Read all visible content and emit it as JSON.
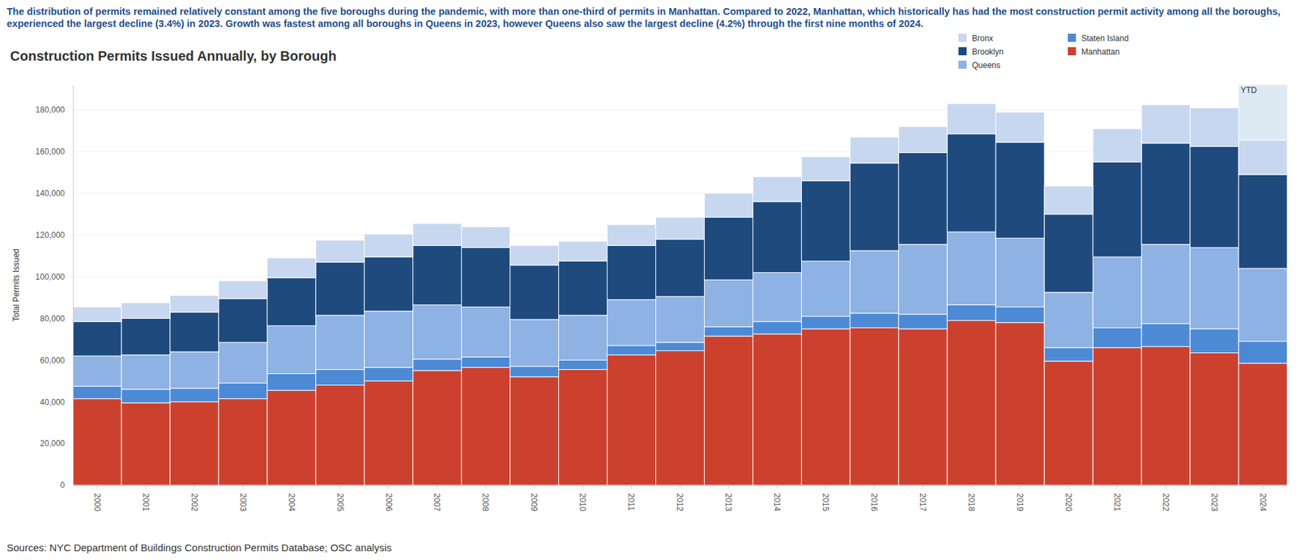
{
  "chart_data": {
    "type": "bar",
    "stacked": true,
    "subtitle": "The distribution of permits remained relatively constant among the five boroughs during the pandemic, with more than one-third of permits in Manhattan. Compared to 2022, Manhattan, which historically has had the most construction permit activity among all the boroughs, experienced the largest decline (3.4%) in 2023. Growth was fastest among all boroughs in Queens in 2023, however Queens also saw the largest decline (4.2%) through the first nine months of 2024.",
    "title": "Construction Permits Issued Annually, by Borough",
    "y_label": "Total Permits Issued",
    "source": "Sources: NYC Department of Buildings Construction Permits Database; OSC analysis",
    "annotations": [
      {
        "text": "YTD",
        "x": "2024"
      }
    ],
    "legend": "top-right",
    "grid": true,
    "categories": [
      "2000",
      "2001",
      "2002",
      "2003",
      "2004",
      "2005",
      "2006",
      "2007",
      "2008",
      "2009",
      "2010",
      "2011",
      "2012",
      "2013",
      "2014",
      "2015",
      "2016",
      "2017",
      "2018",
      "2019",
      "2020",
      "2021",
      "2022",
      "2023",
      "2024"
    ],
    "series": [
      {
        "name": "Manhattan",
        "color": "#cc412e",
        "values": [
          41500,
          39500,
          40000,
          41500,
          45500,
          48000,
          50000,
          55000,
          56500,
          52000,
          55500,
          62500,
          64500,
          71500,
          72500,
          75000,
          75500,
          75000,
          79000,
          78000,
          59500,
          66000,
          66500,
          63500,
          58500
        ]
      },
      {
        "name": "Staten Island",
        "color": "#4d8ad6",
        "values": [
          6000,
          6500,
          6500,
          7500,
          8000,
          7500,
          6500,
          5500,
          5000,
          5000,
          4500,
          4500,
          4000,
          4500,
          6000,
          6000,
          7000,
          7000,
          7500,
          7500,
          6500,
          9500,
          11000,
          11500,
          10500
        ]
      },
      {
        "name": "Queens",
        "color": "#8db2e3",
        "values": [
          14500,
          16500,
          17500,
          19500,
          23000,
          26000,
          27000,
          26000,
          24000,
          22500,
          21500,
          22000,
          22000,
          22500,
          23500,
          26500,
          30000,
          33500,
          35000,
          33000,
          26500,
          34000,
          38000,
          39000,
          35000
        ]
      },
      {
        "name": "Brooklyn",
        "color": "#1e4a7e",
        "values": [
          16500,
          17500,
          19000,
          21000,
          23000,
          25500,
          26000,
          28500,
          28500,
          26000,
          26000,
          26000,
          27500,
          30000,
          34000,
          38500,
          42000,
          44000,
          47000,
          46000,
          37500,
          45500,
          48500,
          48500,
          45000
        ]
      },
      {
        "name": "Bronx",
        "color": "#c6d7ef",
        "values": [
          7000,
          7500,
          8000,
          8500,
          9500,
          10500,
          11000,
          10500,
          10000,
          9500,
          9500,
          10000,
          10500,
          11500,
          12000,
          11500,
          12500,
          12500,
          14500,
          14500,
          13500,
          16000,
          18500,
          18500,
          16500
        ]
      }
    ],
    "ylim": [
      0,
      192000
    ],
    "yticks": [
      0,
      {
        "value": 20000,
        "label": "20,000"
      },
      {
        "value": 40000,
        "label": "40,000"
      },
      {
        "value": 60000,
        "label": "60,000"
      },
      {
        "value": 80000,
        "label": "80,000"
      },
      {
        "value": 100000,
        "label": "100,000"
      },
      {
        "value": 120000,
        "label": "120,000"
      },
      {
        "value": 140000,
        "label": "140,000"
      },
      {
        "value": 160000,
        "label": "160,000"
      },
      {
        "value": 180000,
        "label": "180,000"
      }
    ]
  }
}
